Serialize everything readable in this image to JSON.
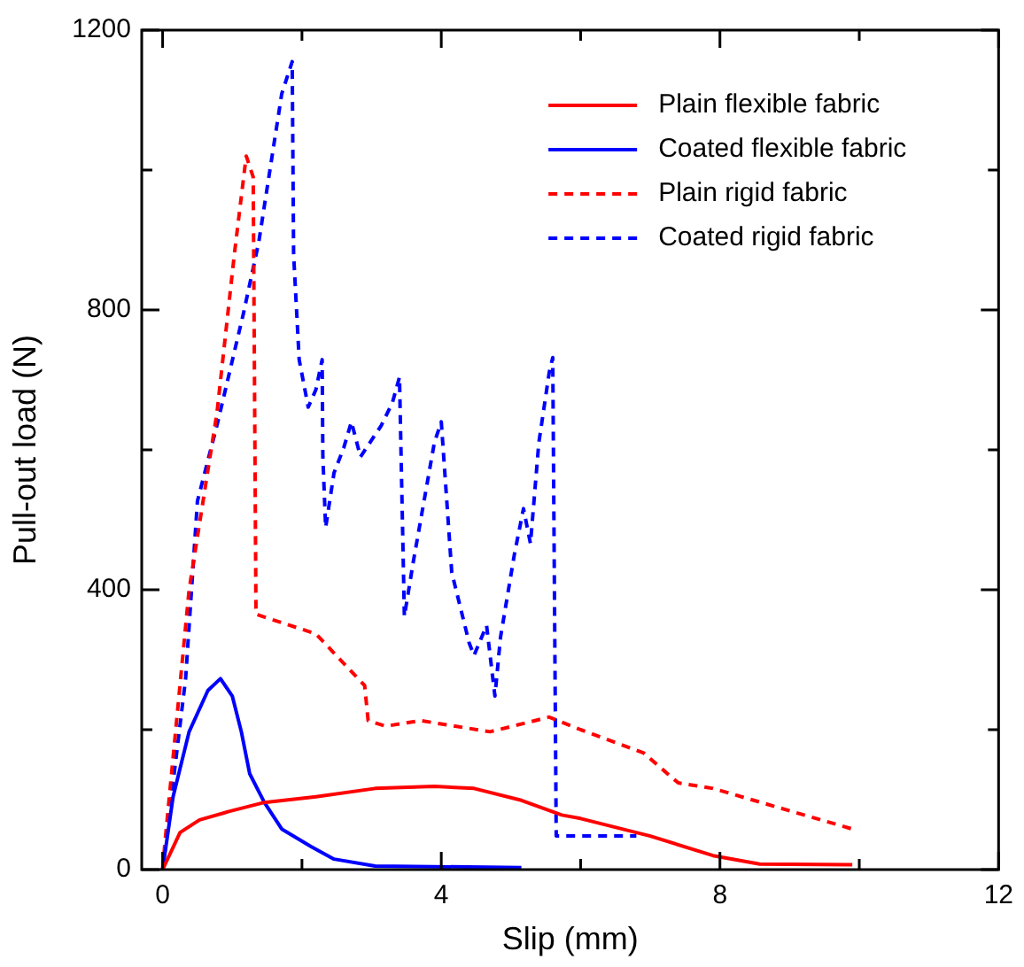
{
  "chart_data": {
    "type": "line",
    "xlabel": "Slip (mm)",
    "ylabel": "Pull-out load (N)",
    "xlim": [
      -0.3,
      12
    ],
    "xticks": [
      0,
      {
        "value": 2,
        "label": null
      },
      4,
      {
        "value": 6,
        "label": null
      },
      8,
      {
        "value": 10,
        "label": null
      },
      12
    ],
    "ylim": [
      0,
      1200
    ],
    "yticks": [
      0,
      {
        "value": 200,
        "label": null
      },
      400,
      {
        "value": 600,
        "label": null
      },
      800,
      {
        "value": 1000,
        "label": null
      },
      1200
    ],
    "grid": false,
    "legend": "top right",
    "marker": "none",
    "series": [
      {
        "name": "Plain flexible fabric",
        "color": "#ff0000",
        "line_style": "solid",
        "x": [
          0,
          0.25,
          0.53,
          0.95,
          1.46,
          2.2,
          3.05,
          3.9,
          4.47,
          5.15,
          5.73,
          6.0,
          7.0,
          7.9,
          8.57,
          9.9
        ],
        "values": [
          0,
          53,
          71,
          83,
          96,
          104,
          116,
          119,
          116,
          99,
          78,
          73,
          48,
          20,
          8,
          7
        ]
      },
      {
        "name": "Coated flexible fabric",
        "color": "#0000ff",
        "line_style": "solid",
        "x": [
          0,
          0.15,
          0.38,
          0.65,
          0.83,
          1.0,
          1.13,
          1.25,
          1.46,
          1.71,
          2.13,
          2.46,
          3.05,
          5.15
        ],
        "values": [
          0,
          104,
          197,
          256,
          273,
          248,
          197,
          137,
          96,
          58,
          33,
          15,
          5,
          3
        ]
      },
      {
        "name": "Plain rigid fabric",
        "color": "#ff0000",
        "line_style": "dashed",
        "x": [
          0,
          0.03,
          0.38,
          0.78,
          1.03,
          1.2,
          1.3,
          1.34,
          2.2,
          2.9,
          2.95,
          3.2,
          3.7,
          4.7,
          5.55,
          6.0,
          6.9,
          7.4,
          7.9,
          9.9
        ],
        "values": [
          0,
          35,
          400,
          653,
          880,
          1020,
          990,
          365,
          337,
          263,
          213,
          205,
          213,
          197,
          218,
          200,
          167,
          124,
          116,
          58
        ]
      },
      {
        "name": "Coated rigid fabric",
        "color": "#0000ff",
        "line_style": "dashed",
        "x": [
          0,
          0.33,
          0.5,
          0.78,
          1.16,
          1.38,
          1.71,
          1.86,
          1.88,
          1.96,
          2.09,
          2.2,
          2.29,
          2.3,
          2.34,
          2.46,
          2.6,
          2.71,
          2.84,
          3.14,
          3.3,
          3.4,
          3.47,
          3.6,
          3.9,
          4.0,
          4.15,
          4.4,
          4.47,
          4.65,
          4.77,
          4.85,
          5.05,
          5.18,
          5.28,
          5.4,
          5.55,
          5.6,
          5.65,
          6.8
        ],
        "values": [
          0,
          273,
          527,
          635,
          795,
          897,
          1109,
          1155,
          880,
          729,
          661,
          686,
          729,
          590,
          489,
          567,
          603,
          640,
          590,
          635,
          668,
          704,
          362,
          441,
          610,
          640,
          425,
          324,
          306,
          349,
          248,
          332,
          451,
          516,
          466,
          610,
          711,
          732,
          48,
          48
        ]
      }
    ]
  }
}
